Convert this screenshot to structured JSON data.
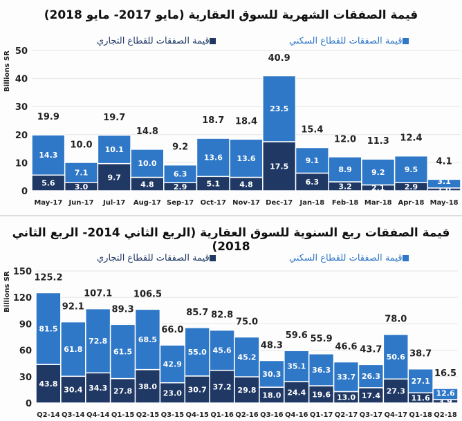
{
  "colors": {
    "residential": "#2f78c8",
    "commercial": "#1f3864"
  },
  "chart_data": [
    {
      "type": "bar",
      "stacked": true,
      "title": "قيمة الصفقات الشهرية للسوق العقارية (مايو 2017- مايو 2018)",
      "ylabel": "Billions SR",
      "ylim": [
        0,
        50
      ],
      "yticks": [
        0,
        10,
        20,
        30,
        40,
        50
      ],
      "grid": true,
      "legend_position": "top",
      "categories": [
        "May-17",
        "Jun-17",
        "Jul-17",
        "Aug-17",
        "Sep-17",
        "Oct-17",
        "Nov-17",
        "Dec-17",
        "Jan-18",
        "Feb-18",
        "Mar-18",
        "Apr-18",
        "May-18"
      ],
      "series": [
        {
          "name": "قيمة الصفقات للقطاع التجاري",
          "values": [
            5.6,
            3.0,
            9.7,
            4.8,
            2.9,
            5.1,
            4.8,
            17.5,
            6.3,
            3.2,
            2.1,
            2.9,
            1.0
          ]
        },
        {
          "name": "قيمة الصفقات للقطاع السكني",
          "values": [
            14.3,
            7.1,
            10.1,
            10.0,
            6.3,
            13.6,
            13.6,
            23.5,
            9.1,
            8.9,
            9.2,
            9.5,
            3.1
          ]
        }
      ],
      "totals": [
        19.9,
        10.0,
        19.7,
        14.8,
        9.2,
        18.7,
        18.4,
        40.9,
        15.4,
        12.0,
        11.3,
        12.4,
        4.1
      ]
    },
    {
      "type": "bar",
      "stacked": true,
      "title": "قيمة الصفقات ربع السنوية للسوق العقارية (الربع الثاني 2014- الربع الثاني 2018)",
      "ylabel": "Billions SR",
      "ylim": [
        0,
        150
      ],
      "yticks": [
        0,
        30,
        60,
        90,
        120,
        150
      ],
      "grid": true,
      "legend_position": "top",
      "categories": [
        "Q2-14",
        "Q3-14",
        "Q4-14",
        "Q1-15",
        "Q2-15",
        "Q3-15",
        "Q4-15",
        "Q1-16",
        "Q2-16",
        "Q3-16",
        "Q4-16",
        "Q1-17",
        "Q2-17",
        "Q3-17",
        "Q4-17",
        "Q1-18",
        "Q2-18"
      ],
      "series": [
        {
          "name": "قيمة الصفقات للقطاع التجاري",
          "values": [
            43.8,
            30.4,
            34.3,
            27.8,
            38.0,
            23.0,
            30.7,
            37.2,
            29.8,
            18.0,
            24.4,
            19.6,
            13.0,
            17.4,
            27.3,
            11.6,
            3.9
          ]
        },
        {
          "name": "قيمة الصفقات للقطاع السكني",
          "values": [
            81.5,
            61.8,
            72.8,
            61.5,
            68.5,
            42.9,
            55.0,
            45.6,
            45.2,
            30.3,
            35.1,
            36.3,
            33.7,
            26.3,
            50.6,
            27.1,
            12.6
          ]
        }
      ],
      "totals": [
        125.2,
        92.1,
        107.1,
        89.3,
        106.5,
        66.0,
        85.7,
        82.8,
        75.0,
        48.3,
        59.6,
        55.9,
        46.6,
        43.7,
        78.0,
        38.7,
        16.5
      ]
    }
  ]
}
